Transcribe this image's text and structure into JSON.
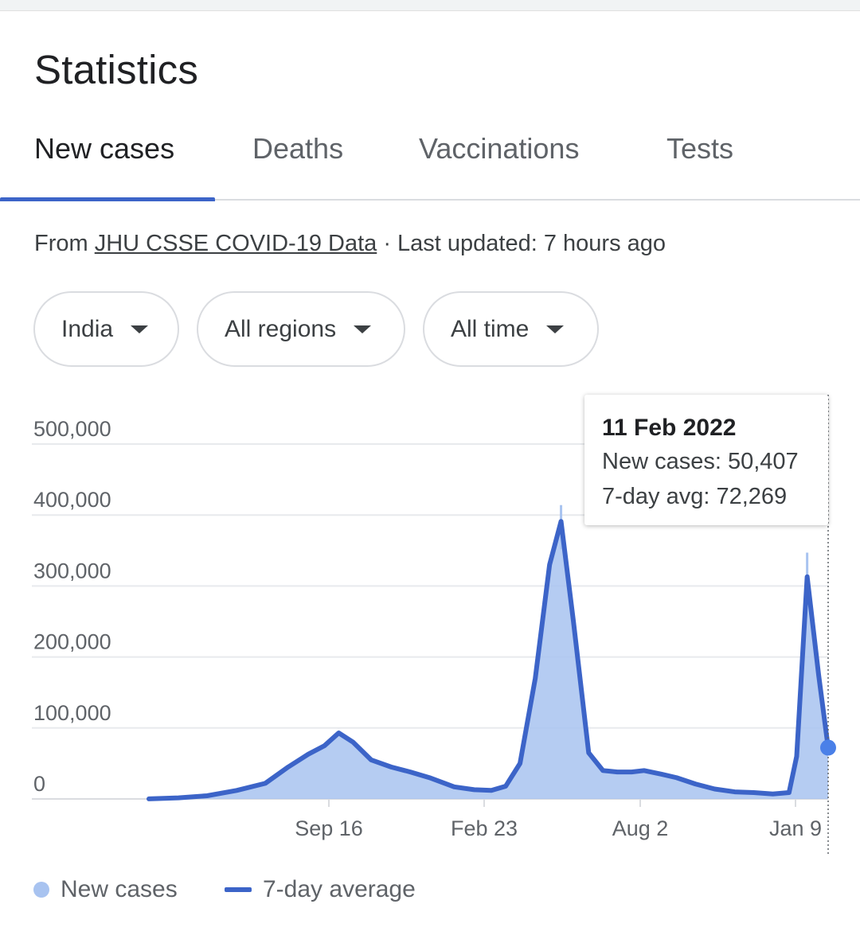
{
  "page": {
    "title": "Statistics"
  },
  "tabs": [
    {
      "label": "New cases",
      "active": true
    },
    {
      "label": "Deaths",
      "active": false
    },
    {
      "label": "Vaccinations",
      "active": false
    },
    {
      "label": "Tests",
      "active": false
    }
  ],
  "source": {
    "prefix": "From ",
    "link_text": "JHU CSSE COVID-19 Data",
    "suffix": " · Last updated: 7 hours ago"
  },
  "filters": {
    "country": "India",
    "region": "All regions",
    "time": "All time"
  },
  "tooltip": {
    "date": "11 Feb 2022",
    "new_cases": "New cases: 50,407",
    "avg": "7-day avg: 72,269"
  },
  "legend": {
    "new_cases": "New cases",
    "avg": "7-day average"
  },
  "colors": {
    "accent": "#3c64c8",
    "area": "#a8c3f0",
    "marker": "#4a80e8"
  },
  "chart_data": {
    "type": "area",
    "x_tick_labels": [
      "Sep 16",
      "Feb 23",
      "Aug 2",
      "Jan 9"
    ],
    "y_tick_labels": [
      "0",
      "100,000",
      "200,000",
      "300,000",
      "400,000",
      "500,000"
    ],
    "ylim": [
      0,
      500000
    ],
    "grid": true,
    "legend_position": "bottom",
    "series": [
      {
        "name": "New cases",
        "style": "area"
      },
      {
        "name": "7-day average",
        "style": "line"
      }
    ],
    "x": [
      "2020-03-01",
      "2020-04-01",
      "2020-05-01",
      "2020-06-01",
      "2020-07-01",
      "2020-07-25",
      "2020-08-15",
      "2020-09-01",
      "2020-09-16",
      "2020-10-01",
      "2020-10-20",
      "2020-11-10",
      "2020-11-30",
      "2020-12-20",
      "2021-01-15",
      "2021-02-05",
      "2021-02-23",
      "2021-03-10",
      "2021-03-25",
      "2021-04-10",
      "2021-04-25",
      "2021-05-07",
      "2021-05-20",
      "2021-06-05",
      "2021-06-20",
      "2021-07-05",
      "2021-07-20",
      "2021-08-02",
      "2021-08-20",
      "2021-09-05",
      "2021-09-25",
      "2021-10-15",
      "2021-11-05",
      "2021-11-25",
      "2021-12-15",
      "2022-01-01",
      "2022-01-09",
      "2022-01-20",
      "2022-02-01",
      "2022-02-11"
    ],
    "seven_day_avg": [
      100,
      1500,
      4500,
      12000,
      22000,
      45000,
      63000,
      75000,
      93000,
      80000,
      55000,
      45000,
      38000,
      30000,
      17000,
      13000,
      12000,
      18000,
      50000,
      170000,
      330000,
      391000,
      250000,
      65000,
      40000,
      38000,
      38000,
      40000,
      35000,
      30000,
      21000,
      14000,
      10000,
      9000,
      7000,
      9000,
      60000,
      313000,
      175000,
      72269
    ],
    "new_cases_peaks": [
      {
        "x": "2021-05-07",
        "value": 414000
      },
      {
        "x": "2022-01-20",
        "value": 347000
      }
    ]
  }
}
